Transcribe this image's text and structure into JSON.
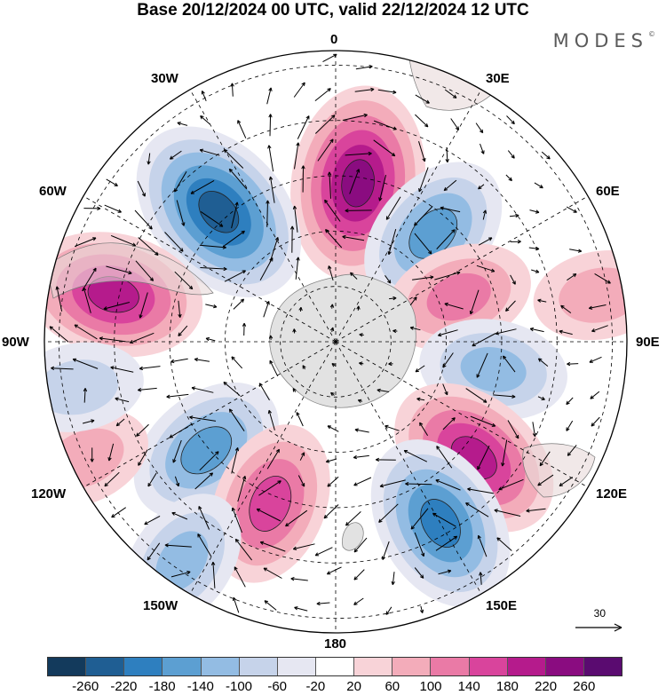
{
  "title": "Base 20/12/2024 00 UTC, valid 22/12/2024 12 UTC",
  "brand": "MODES",
  "brand_mark": "©",
  "longitude_labels": {
    "n0": "0",
    "n30e": "30E",
    "n60e": "60E",
    "n90e": "90E",
    "n120e": "120E",
    "n150e": "150E",
    "n180": "180",
    "n150w": "150W",
    "n120w": "120W",
    "n90w": "90W",
    "n60w": "60W",
    "n30w": "30W"
  },
  "reference_vector_label": "30",
  "colorbar": {
    "colors": [
      "#133a5c",
      "#1f5e93",
      "#2e7fbf",
      "#5c9fd2",
      "#93bce3",
      "#c6d3ea",
      "#e6e7f2",
      "#ffffff",
      "#f8d3d8",
      "#f3acba",
      "#ea7aa6",
      "#d9449c",
      "#b51b8c",
      "#8a0c80",
      "#5a0b70"
    ],
    "ticks": [
      "-260",
      "-220",
      "-180",
      "-140",
      "-100",
      "-60",
      "-20",
      "20",
      "60",
      "100",
      "140",
      "180",
      "220",
      "260"
    ]
  },
  "anomaly_centers": [
    {
      "lon": 8,
      "colat": 0.55,
      "level": 220,
      "name": "anom-high-0"
    },
    {
      "lon": -42,
      "colat": 0.6,
      "level": -220,
      "name": "anom-low-45w"
    },
    {
      "lon": 42,
      "colat": 0.5,
      "level": -140,
      "name": "anom-low-40e"
    },
    {
      "lon": -78,
      "colat": 0.78,
      "level": 180,
      "name": "anom-high-75w"
    },
    {
      "lon": 70,
      "colat": 0.45,
      "level": 100,
      "name": "anom-high-70e"
    },
    {
      "lon": 100,
      "colat": 0.55,
      "level": -100,
      "name": "anom-low-100e"
    },
    {
      "lon": 130,
      "colat": 0.62,
      "level": 180,
      "name": "anom-high-130e"
    },
    {
      "lon": 150,
      "colat": 0.72,
      "level": -180,
      "name": "anom-low-150e"
    },
    {
      "lon": -130,
      "colat": 0.58,
      "level": -140,
      "name": "anom-low-130w"
    },
    {
      "lon": -158,
      "colat": 0.6,
      "level": 140,
      "name": "anom-high-160w"
    },
    {
      "lon": -145,
      "colat": 0.92,
      "level": -100,
      "name": "anom-low-145w-outer"
    },
    {
      "lon": -115,
      "colat": 0.95,
      "level": 60,
      "name": "anom-high-115w-outer"
    },
    {
      "lon": -100,
      "colat": 0.9,
      "level": -60,
      "name": "anom-low-100w-outer"
    },
    {
      "lon": 80,
      "colat": 0.92,
      "level": 60,
      "name": "anom-high-80e-outer"
    }
  ]
}
